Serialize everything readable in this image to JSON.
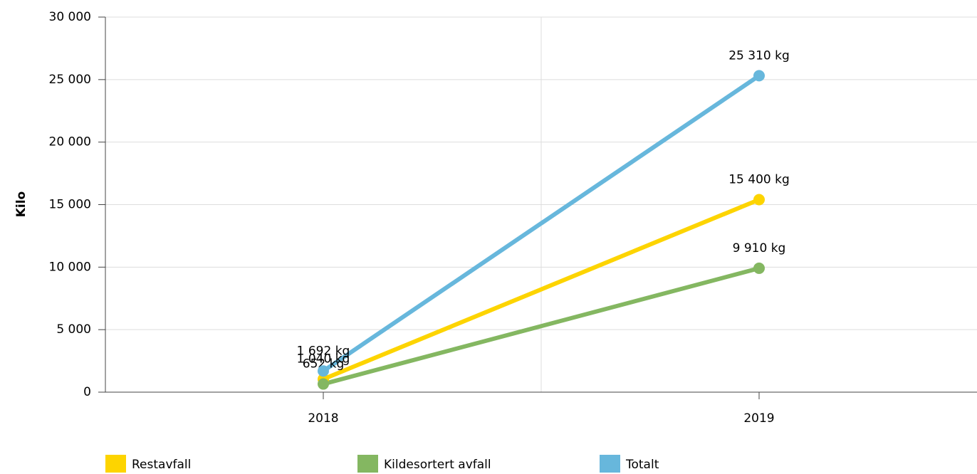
{
  "chart_data": {
    "type": "line",
    "y_label": "Kilo",
    "categories": [
      "2018",
      "2019"
    ],
    "series": [
      {
        "name": "Restavfall",
        "color": "#fdd400",
        "values": [
          1040,
          15400
        ],
        "value_labels": [
          "1 040 kg",
          "15 400 kg"
        ]
      },
      {
        "name": "Kildesortert avfall",
        "color": "#84b761",
        "values": [
          652,
          9910
        ],
        "value_labels": [
          "652 kg",
          "9 910 kg"
        ]
      },
      {
        "name": "Totalt",
        "color": "#67b7dc",
        "values": [
          1692,
          25310
        ],
        "value_labels": [
          "1 692 kg",
          "25 310 kg"
        ]
      }
    ],
    "ylim": [
      0,
      30000
    ],
    "yticks": [
      0,
      {
        "value": 5000,
        "label": "5 000"
      },
      {
        "value": 10000,
        "label": "10 000"
      },
      {
        "value": 15000,
        "label": "15 000"
      },
      {
        "value": 20000,
        "label": "20 000"
      },
      {
        "value": 25000,
        "label": "25 000"
      },
      {
        "value": 30000,
        "label": "30 000"
      }
    ],
    "grid": true
  }
}
